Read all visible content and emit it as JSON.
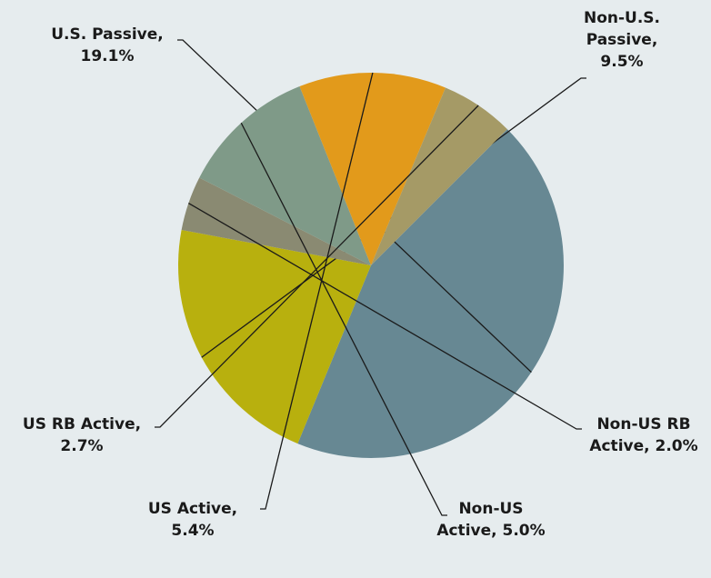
{
  "chart_data": {
    "type": "pie",
    "values": [
      19.1,
      9.5,
      2.0,
      5.0,
      5.4,
      2.7
    ],
    "value_labels": [
      [
        "U.S. Passive,",
        "19.1%"
      ],
      [
        "Non-U.S.",
        "Passive,",
        "9.5%"
      ],
      [
        "Non-US RB",
        "Active, 2.0%"
      ],
      [
        "Non-US",
        "Active, 5.0%"
      ],
      [
        "US Active,",
        "5.4%"
      ],
      [
        "US RB Active,",
        "2.7%"
      ]
    ],
    "colors": [
      "#678893",
      "#b8b00e",
      "#8a8a72",
      "#7f9a88",
      "#e29a1b",
      "#a59a66"
    ],
    "start_angle": 45,
    "direction": "clockwise"
  }
}
